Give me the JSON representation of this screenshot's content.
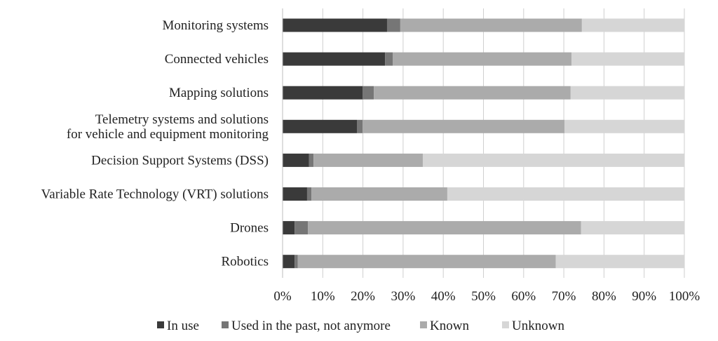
{
  "chart_data": {
    "type": "bar",
    "orientation": "horizontal",
    "stacked": true,
    "categories": [
      "Monitoring systems",
      "Connected vehicles",
      "Mapping solutions",
      "Telemetry systems and solutions\nfor vehicle and equipment monitoring",
      "Decision Support Systems (DSS)",
      "Variable Rate Technology (VRT) solutions",
      "Drones",
      "Robotics"
    ],
    "series": [
      {
        "name": "In use",
        "color": "#3a3a3a",
        "values": [
          26.0,
          25.5,
          19.9,
          18.5,
          6.6,
          6.1,
          3.0,
          3.0
        ]
      },
      {
        "name": "Used in the past, not anymore",
        "color": "#767676",
        "values": [
          3.3,
          1.9,
          2.8,
          1.4,
          1.1,
          1.1,
          3.3,
          0.8
        ]
      },
      {
        "name": "Known",
        "color": "#ababab",
        "values": [
          45.2,
          44.5,
          49.0,
          50.3,
          27.2,
          33.8,
          68.0,
          64.2
        ]
      },
      {
        "name": "Unknown",
        "color": "#d6d6d6",
        "values": [
          25.5,
          28.1,
          28.3,
          29.8,
          65.1,
          59.0,
          25.7,
          32.0
        ]
      }
    ],
    "xticks": [
      "0%",
      "10%",
      "20%",
      "30%",
      "40%",
      "50%",
      "60%",
      "70%",
      "80%",
      "90%",
      "100%"
    ],
    "xlim": [
      0,
      100
    ],
    "grid": true,
    "legend": "bottom",
    "title": "",
    "xlabel": "",
    "ylabel": ""
  }
}
